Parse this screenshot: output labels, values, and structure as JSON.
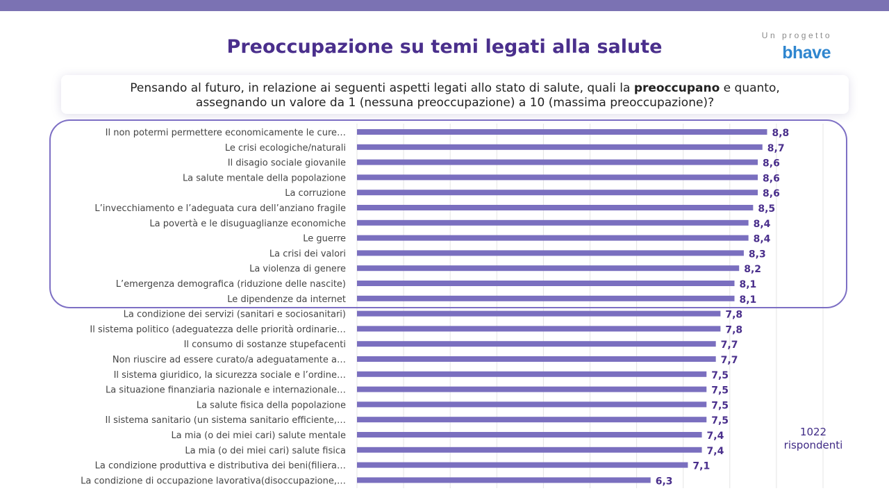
{
  "header": {
    "title": "Preoccupazione su temi legati alla salute",
    "brand_kicker": "Un progetto",
    "brand_logo": "bhave"
  },
  "question": {
    "line1_before": "Pensando al futuro, in relazione ai seguenti aspetti legati allo stato di salute, quali la ",
    "line1_bold": "preoccupano",
    "line1_after": " e quanto,",
    "line2": "assegnando un valore da 1 (nessuna preoccupazione) a 10 (massima preoccupazione)?"
  },
  "respondents": {
    "count": "1022",
    "label": "rispondenti"
  },
  "colors": {
    "bar": "#7a6fbf",
    "value_label": "#4a2f8c",
    "title": "#4a2f8c",
    "frame": "#7d6fc4",
    "top_bar": "#7b72b3"
  },
  "chart_data": {
    "type": "bar",
    "orientation": "horizontal",
    "xlim": [
      0,
      10
    ],
    "grid": true,
    "highlighted_count": 12,
    "categories": [
      "Il non potermi permettere economicamente  le cure…",
      "Le crisi ecologiche/naturali",
      "Il disagio sociale giovanile",
      "La salute mentale della popolazione",
      "La corruzione",
      "L’invecchiamento e l’adeguata cura dell’anziano fragile",
      "La povertà e le disuguaglianze economiche",
      "Le guerre",
      "La crisi dei valori",
      "La violenza di genere",
      "L’emergenza demografica (riduzione delle nascite)",
      "Le dipendenze da internet",
      "La condizione dei servizi (sanitari e sociosanitari)",
      "Il sistema politico (adeguatezza delle priorità ordinarie…",
      "Il consumo di sostanze stupefacenti",
      "Non riuscire ad essere curato/a adeguatamente a…",
      "Il sistema giuridico, la sicurezza sociale e l’ordine…",
      "La situazione finanziaria nazionale e internazionale…",
      "La salute fisica della popolazione",
      "Il sistema sanitario (un sistema sanitario efficiente,…",
      "La mia (o dei miei cari) salute mentale",
      "La mia (o dei miei cari) salute fisica",
      "La condizione produttiva e distributiva dei beni(filiera…",
      "La condizione di occupazione lavorativa(disoccupazione,…"
    ],
    "values": [
      8.8,
      8.7,
      8.6,
      8.6,
      8.6,
      8.5,
      8.4,
      8.4,
      8.3,
      8.2,
      8.1,
      8.1,
      7.8,
      7.8,
      7.7,
      7.7,
      7.5,
      7.5,
      7.5,
      7.5,
      7.4,
      7.4,
      7.1,
      6.3
    ],
    "value_labels": [
      "8,8",
      "8,7",
      "8,6",
      "8,6",
      "8,6",
      "8,5",
      "8,4",
      "8,4",
      "8,3",
      "8,2",
      "8,1",
      "8,1",
      "7,8",
      "7,8",
      "7,7",
      "7,7",
      "7,5",
      "7,5",
      "7,5",
      "7,5",
      "7,4",
      "7,4",
      "7,1",
      "6,3"
    ]
  }
}
